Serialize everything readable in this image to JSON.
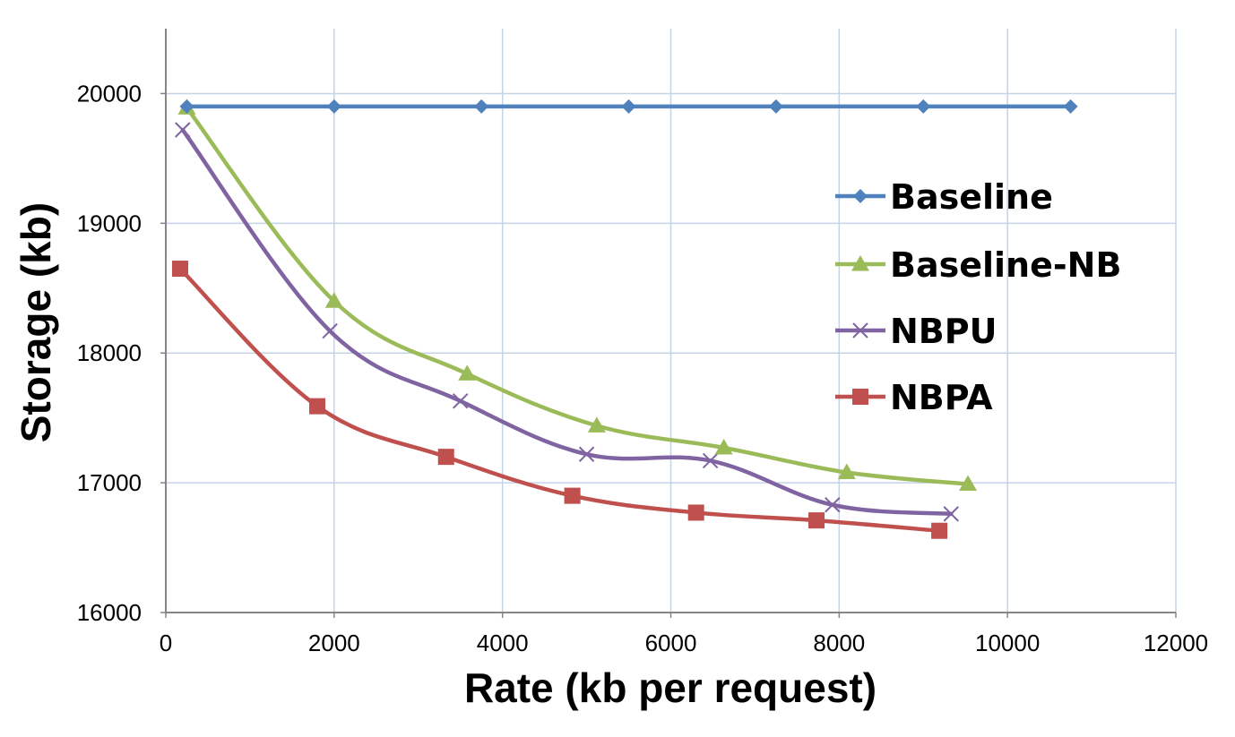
{
  "chart_data": {
    "type": "line",
    "title": "",
    "xlabel": "Rate (kb per request)",
    "ylabel": "Storage (kb)",
    "xlim": [
      0,
      12000
    ],
    "ylim": [
      16000,
      20500
    ],
    "x_ticks": [
      0,
      2000,
      4000,
      6000,
      8000,
      10000,
      12000
    ],
    "y_ticks": [
      16000,
      17000,
      18000,
      19000,
      20000
    ],
    "x_tick_labels": [
      "0",
      "2000",
      "4000",
      "6000",
      "8000",
      "10000",
      "12000"
    ],
    "y_tick_labels": [
      "16000",
      "17000",
      "18000",
      "19000",
      "20000"
    ],
    "grid": true,
    "legend_position": "right",
    "series": [
      {
        "name": "Baseline",
        "color": "#4f81bd",
        "marker": "diamond",
        "x": [
          250,
          2000,
          3750,
          5500,
          7250,
          9000,
          10750
        ],
        "y": [
          19900,
          19900,
          19900,
          19900,
          19900,
          19900,
          19900
        ]
      },
      {
        "name": "Baseline-NB",
        "color": "#9bbb59",
        "marker": "triangle",
        "x": [
          250,
          2000,
          3580,
          5120,
          6630,
          8090,
          9530
        ],
        "y": [
          19890,
          18400,
          17840,
          17440,
          17270,
          17080,
          16990
        ]
      },
      {
        "name": "NBPU",
        "color": "#8064a2",
        "marker": "x",
        "x": [
          200,
          1950,
          3500,
          5000,
          6470,
          7920,
          9330
        ],
        "y": [
          19720,
          18170,
          17630,
          17220,
          17170,
          16830,
          16760
        ]
      },
      {
        "name": "NBPA",
        "color": "#c0504d",
        "marker": "square",
        "x": [
          170,
          1800,
          3330,
          4830,
          6300,
          7730,
          9190
        ],
        "y": [
          18650,
          17590,
          17200,
          16900,
          16770,
          16710,
          16630
        ]
      }
    ]
  }
}
